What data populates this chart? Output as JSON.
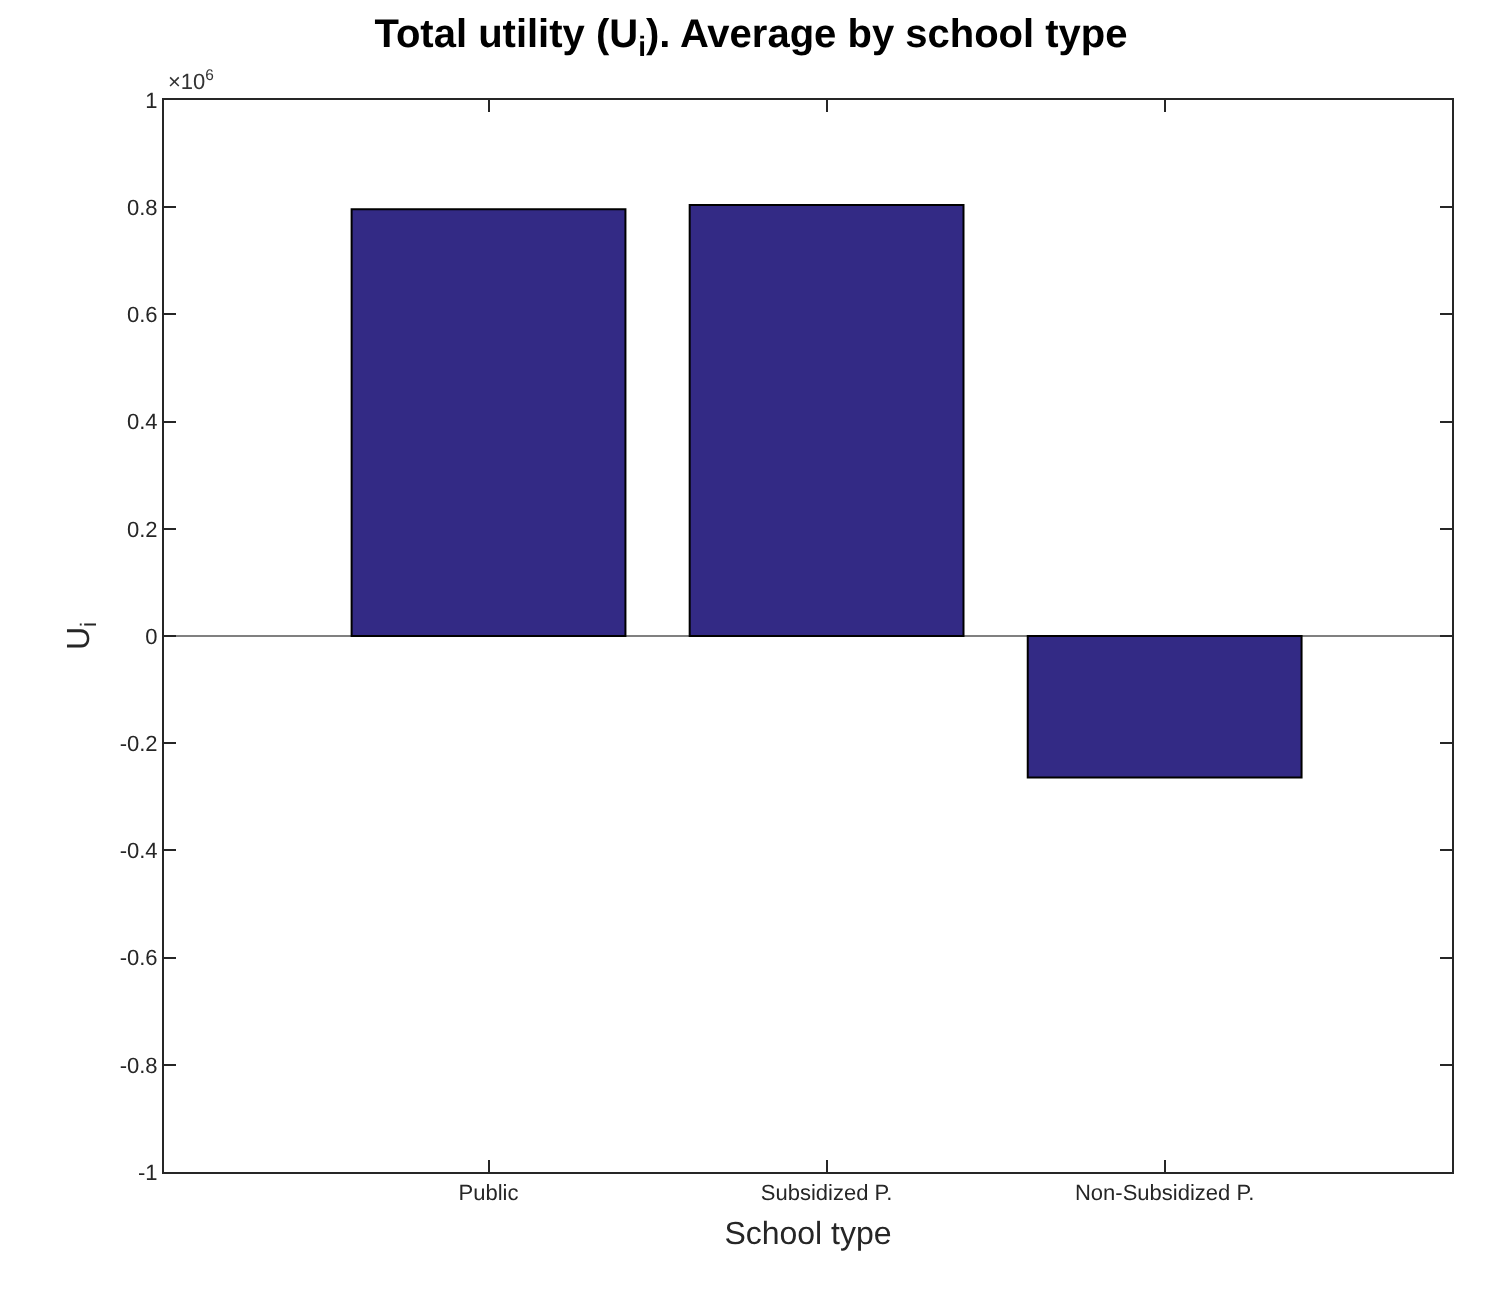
{
  "chart_data": {
    "type": "bar",
    "title": "Total utility (U$_{i}$). Average by school type",
    "xlabel": "School type",
    "ylabel": "U$_{i}$",
    "categories": [
      "Public",
      "Subsidized P.",
      "Non-Subsidized P."
    ],
    "values": [
      0.796,
      0.804,
      -0.264
    ],
    "color": "#332a85",
    "ylim": [
      -1,
      1
    ],
    "yticks": [
      -1,
      -0.8,
      -0.6,
      -0.4,
      -0.2,
      0,
      0.2,
      0.4,
      0.6,
      0.8,
      1
    ],
    "grid": false,
    "ref_lines": [
      {
        "axis": "y",
        "value": 0,
        "color": "#808080"
      }
    ],
    "annotations": [
      "×10$^{6}$"
    ]
  }
}
